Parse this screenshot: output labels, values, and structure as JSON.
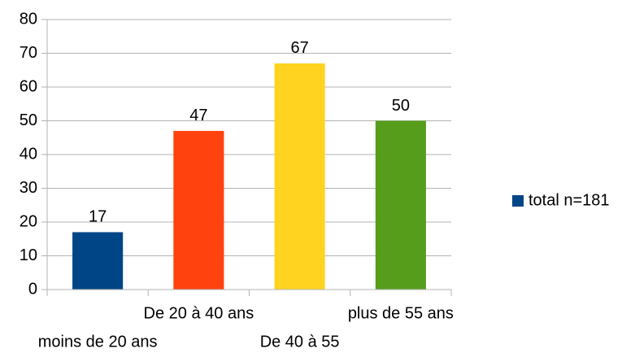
{
  "chart_data": {
    "type": "bar",
    "categories": [
      "moins de 20 ans",
      "De 20 à 40 ans",
      "De 40 à 55",
      "plus de 55 ans"
    ],
    "series": [
      {
        "name": "total n=181",
        "color": "#004586",
        "colors": [
          "#004586",
          "#ff420e",
          "#ffd320",
          "#579d1c"
        ],
        "values": [
          17,
          47,
          67,
          50
        ]
      }
    ],
    "ylim": [
      0,
      80
    ],
    "yticks": [
      0,
      10,
      20,
      30,
      40,
      50,
      60,
      70,
      80
    ],
    "grid": true,
    "legend": "right"
  }
}
